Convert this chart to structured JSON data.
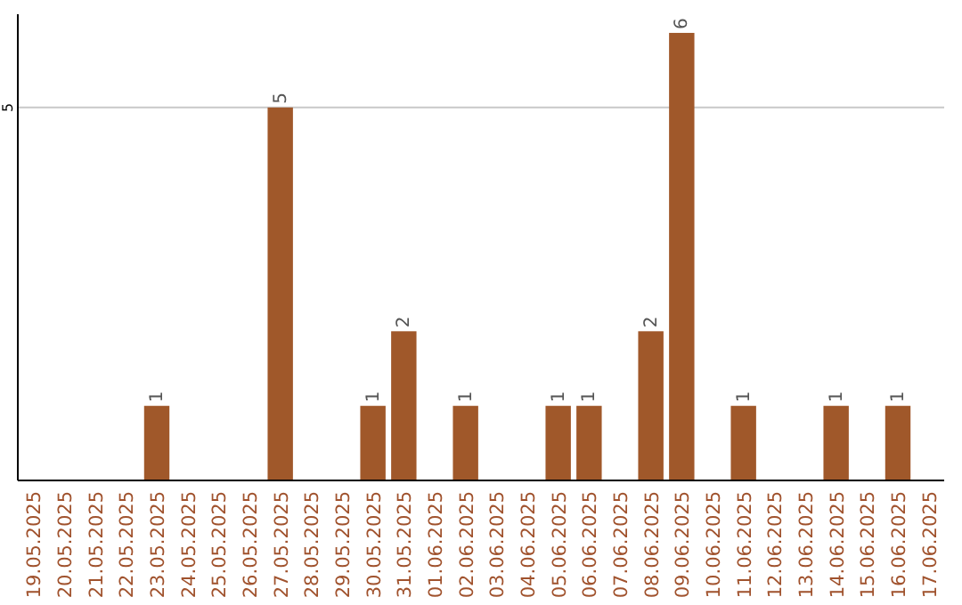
{
  "chart_data": {
    "type": "bar",
    "categories": [
      "19.05.2025",
      "20.05.2025",
      "21.05.2025",
      "22.05.2025",
      "23.05.2025",
      "24.05.2025",
      "25.05.2025",
      "26.05.2025",
      "27.05.2025",
      "28.05.2025",
      "29.05.2025",
      "30.05.2025",
      "31.05.2025",
      "01.06.2025",
      "02.06.2025",
      "03.06.2025",
      "04.06.2025",
      "05.06.2025",
      "06.06.2025",
      "07.06.2025",
      "08.06.2025",
      "09.06.2025",
      "10.06.2025",
      "11.06.2025",
      "12.06.2025",
      "13.06.2025",
      "14.06.2025",
      "15.06.2025",
      "16.06.2025",
      "17.06.2025"
    ],
    "values": [
      0,
      0,
      0,
      0,
      1,
      0,
      0,
      0,
      5,
      0,
      0,
      1,
      2,
      0,
      1,
      0,
      0,
      1,
      1,
      0,
      2,
      6,
      0,
      1,
      0,
      0,
      1,
      0,
      1,
      0
    ],
    "value_labels": [
      null,
      null,
      null,
      null,
      "1",
      null,
      null,
      null,
      "5",
      null,
      null,
      "1",
      "2",
      null,
      "1",
      null,
      null,
      "1",
      "1",
      null,
      "2",
      "6",
      null,
      "1",
      null,
      null,
      "1",
      null,
      "1",
      null
    ],
    "color": "#a0582a",
    "ylim": [
      0,
      6.25
    ],
    "yticks": [
      5
    ],
    "grid": "y"
  }
}
